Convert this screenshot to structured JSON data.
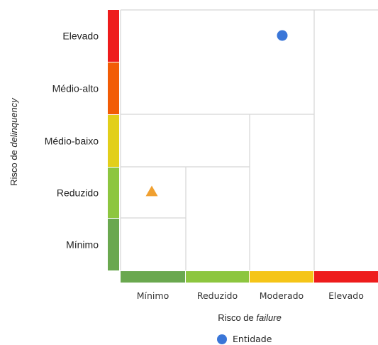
{
  "chart_data": {
    "type": "scatter",
    "xlabel_prefix": "Risco de ",
    "xlabel_italic": "failure",
    "ylabel_prefix": "Risco de ",
    "ylabel_italic": "delinquency",
    "x_categories": [
      "Mínimo",
      "Reduzido",
      "Moderado",
      "Elevado"
    ],
    "y_categories": [
      "Mínimo",
      "Reduzido",
      "Médio-baixo",
      "Médio-alto",
      "Elevado"
    ],
    "x_band_colors": [
      "#6aa84f",
      "#8dc63f",
      "#f5c518",
      "#ee1c1c"
    ],
    "y_band_colors": [
      "#6aa84f",
      "#8dc63f",
      "#e2cf1a",
      "#f25c05",
      "#ee1c1c"
    ],
    "grid_line_color": "#d5d5d5",
    "points": [
      {
        "series": "Entidade",
        "x": "Moderado",
        "y": "Elevado",
        "marker": "circle",
        "color": "#3a76d8"
      },
      {
        "series": "",
        "x": "Mínimo",
        "y": "Reduzido",
        "marker": "triangle",
        "color": "#f0a030"
      }
    ],
    "legend": [
      {
        "name": "Entidade",
        "color": "#3a76d8",
        "marker": "circle"
      }
    ],
    "legend_position": "bottom"
  }
}
